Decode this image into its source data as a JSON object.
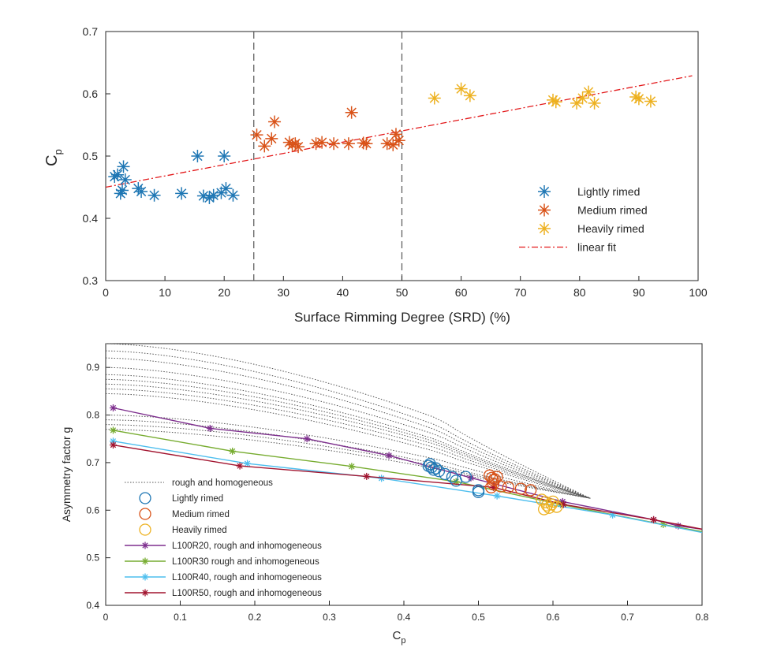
{
  "chart_data": [
    {
      "type": "scatter",
      "title": "",
      "xlabel": "Surface Rimming Degree (SRD) (%)",
      "ylabel": "C",
      "ylabel_sub": "p",
      "xlim": [
        0,
        100
      ],
      "ylim": [
        0.3,
        0.7
      ],
      "x_ticks": [
        "0",
        "10",
        "20",
        "30",
        "40",
        "50",
        "60",
        "70",
        "80",
        "90",
        "100"
      ],
      "y_ticks": [
        "0.3",
        "0.4",
        "0.5",
        "0.6",
        "0.7"
      ],
      "vertical_lines": [
        25,
        50
      ],
      "legend_position": "right",
      "colors": {
        "lightly": "#1f77b4",
        "medium": "#d95319",
        "heavily": "#edb120",
        "fit": "#e31a1c",
        "vline": "#555555"
      },
      "series": [
        {
          "name": "Lightly rimed",
          "marker": "asterisk",
          "points": [
            [
              1.5,
              0.467
            ],
            [
              2,
              0.47
            ],
            [
              2.5,
              0.44
            ],
            [
              3,
              0.483
            ],
            [
              3.3,
              0.462
            ],
            [
              2.8,
              0.445
            ],
            [
              5.5,
              0.448
            ],
            [
              6,
              0.443
            ],
            [
              8.2,
              0.437
            ],
            [
              12.8,
              0.44
            ],
            [
              15.5,
              0.5
            ],
            [
              16.5,
              0.436
            ],
            [
              17.5,
              0.433
            ],
            [
              18.2,
              0.437
            ],
            [
              19.5,
              0.441
            ],
            [
              20,
              0.5
            ],
            [
              20.3,
              0.448
            ],
            [
              21.5,
              0.437
            ]
          ]
        },
        {
          "name": "Medium rimed",
          "marker": "asterisk",
          "points": [
            [
              25.5,
              0.534
            ],
            [
              26.8,
              0.516
            ],
            [
              28,
              0.528
            ],
            [
              28.5,
              0.555
            ],
            [
              31,
              0.522
            ],
            [
              31.5,
              0.518
            ],
            [
              32,
              0.52
            ],
            [
              32.5,
              0.515
            ],
            [
              35.5,
              0.52
            ],
            [
              36.5,
              0.522
            ],
            [
              38.5,
              0.52
            ],
            [
              41,
              0.52
            ],
            [
              41.5,
              0.57
            ],
            [
              43.5,
              0.521
            ],
            [
              44,
              0.52
            ],
            [
              47.5,
              0.52
            ],
            [
              48.5,
              0.518
            ],
            [
              49,
              0.535
            ],
            [
              49.5,
              0.525
            ]
          ]
        },
        {
          "name": "Heavily rimed",
          "marker": "asterisk",
          "points": [
            [
              55.5,
              0.593
            ],
            [
              60,
              0.608
            ],
            [
              61.5,
              0.597
            ],
            [
              75.5,
              0.59
            ],
            [
              76,
              0.587
            ],
            [
              79.5,
              0.585
            ],
            [
              80.5,
              0.593
            ],
            [
              81.5,
              0.603
            ],
            [
              82.5,
              0.585
            ],
            [
              89.5,
              0.595
            ],
            [
              90,
              0.592
            ],
            [
              92,
              0.588
            ]
          ]
        },
        {
          "name": "linear fit",
          "marker": "line",
          "points": [
            [
              0,
              0.45
            ],
            [
              99,
              0.629
            ]
          ]
        }
      ]
    },
    {
      "type": "line",
      "title": "",
      "xlabel": "C",
      "xlabel_sub": "p",
      "ylabel": "Asymmetry factor g",
      "xlim": [
        0,
        0.8
      ],
      "ylim": [
        0.4,
        0.95
      ],
      "x_ticks": [
        "0",
        "0.1",
        "0.2",
        "0.3",
        "0.4",
        "0.5",
        "0.6",
        "0.7",
        "0.8"
      ],
      "y_ticks": [
        "0.4",
        "0.5",
        "0.6",
        "0.7",
        "0.8",
        "0.9"
      ],
      "legend_position": "left",
      "colors": {
        "homog": "#555555",
        "lightly": "#1f77b4",
        "medium": "#d95319",
        "heavily": "#edb120",
        "r20": "#7e2f8e",
        "r30": "#77ac30",
        "r40": "#4dbeee",
        "r50": "#a2142f"
      },
      "legend_labels": [
        "rough and homogeneous",
        "Lightly rimed",
        "Medium rimed",
        "Heavily rimed",
        "L100R20, rough and inhomogeneous",
        "L100R30 rough and inhomogeneous",
        "L100R40, rough and inhomogeneous",
        "L100R50, rough and inhomogeneous"
      ],
      "homogeneous_curves": [
        {
          "y0": 0.95,
          "y_at_045": 0.79
        },
        {
          "y0": 0.935,
          "y_at_045": 0.775
        },
        {
          "y0": 0.92,
          "y_at_045": 0.765
        },
        {
          "y0": 0.9,
          "y_at_045": 0.755
        },
        {
          "y0": 0.885,
          "y_at_045": 0.745
        },
        {
          "y0": 0.875,
          "y_at_045": 0.74
        },
        {
          "y0": 0.865,
          "y_at_045": 0.735
        },
        {
          "y0": 0.855,
          "y_at_045": 0.728
        },
        {
          "y0": 0.845,
          "y_at_045": 0.72
        },
        {
          "y0": 0.8,
          "y_at_045": 0.705
        },
        {
          "y0": 0.79,
          "y_at_045": 0.695
        },
        {
          "y0": 0.78,
          "y_at_045": 0.69
        },
        {
          "y0": 0.77,
          "y_at_045": 0.685
        }
      ],
      "series": [
        {
          "name": "Lightly rimed",
          "marker": "circle",
          "points": [
            [
              0.433,
              0.693
            ],
            [
              0.435,
              0.697
            ],
            [
              0.437,
              0.69
            ],
            [
              0.44,
              0.685
            ],
            [
              0.443,
              0.688
            ],
            [
              0.447,
              0.682
            ],
            [
              0.455,
              0.676
            ],
            [
              0.465,
              0.67
            ],
            [
              0.47,
              0.662
            ],
            [
              0.483,
              0.67
            ],
            [
              0.5,
              0.642
            ],
            [
              0.5,
              0.638
            ]
          ]
        },
        {
          "name": "Medium rimed",
          "marker": "circle",
          "points": [
            [
              0.515,
              0.673
            ],
            [
              0.518,
              0.668
            ],
            [
              0.52,
              0.663
            ],
            [
              0.522,
              0.665
            ],
            [
              0.525,
              0.67
            ],
            [
              0.52,
              0.655
            ],
            [
              0.517,
              0.648
            ],
            [
              0.53,
              0.65
            ],
            [
              0.54,
              0.648
            ],
            [
              0.557,
              0.645
            ],
            [
              0.57,
              0.642
            ]
          ]
        },
        {
          "name": "Heavily rimed",
          "marker": "circle",
          "points": [
            [
              0.585,
              0.622
            ],
            [
              0.59,
              0.617
            ],
            [
              0.592,
              0.61
            ],
            [
              0.595,
              0.605
            ],
            [
              0.598,
              0.612
            ],
            [
              0.6,
              0.618
            ],
            [
              0.605,
              0.607
            ],
            [
              0.588,
              0.602
            ]
          ]
        },
        {
          "name": "L100R20, rough and inhomogeneous",
          "marker": "asterisk",
          "points": [
            [
              0.01,
              0.815
            ],
            [
              0.14,
              0.772
            ],
            [
              0.27,
              0.75
            ],
            [
              0.38,
              0.715
            ],
            [
              0.49,
              0.668
            ],
            [
              0.613,
              0.618
            ],
            [
              0.735,
              0.58
            ],
            [
              0.768,
              0.567
            ],
            [
              0.8,
              0.56
            ]
          ]
        },
        {
          "name": "L100R30 rough and inhomogeneous",
          "marker": "asterisk",
          "points": [
            [
              0.01,
              0.768
            ],
            [
              0.17,
              0.724
            ],
            [
              0.33,
              0.692
            ],
            [
              0.47,
              0.66
            ],
            [
              0.61,
              0.612
            ],
            [
              0.748,
              0.57
            ],
            [
              0.8,
              0.555
            ]
          ]
        },
        {
          "name": "L100R40, rough and inhomogeneous",
          "marker": "asterisk",
          "points": [
            [
              0.01,
              0.745
            ],
            [
              0.19,
              0.698
            ],
            [
              0.37,
              0.667
            ],
            [
              0.525,
              0.63
            ],
            [
              0.68,
              0.59
            ],
            [
              0.8,
              0.553
            ]
          ]
        },
        {
          "name": "L100R50, rough and inhomogeneous",
          "marker": "asterisk",
          "points": [
            [
              0.01,
              0.737
            ],
            [
              0.18,
              0.693
            ],
            [
              0.35,
              0.671
            ],
            [
              0.52,
              0.648
            ],
            [
              0.614,
              0.612
            ],
            [
              0.735,
              0.58
            ],
            [
              0.8,
              0.56
            ]
          ]
        }
      ]
    }
  ]
}
